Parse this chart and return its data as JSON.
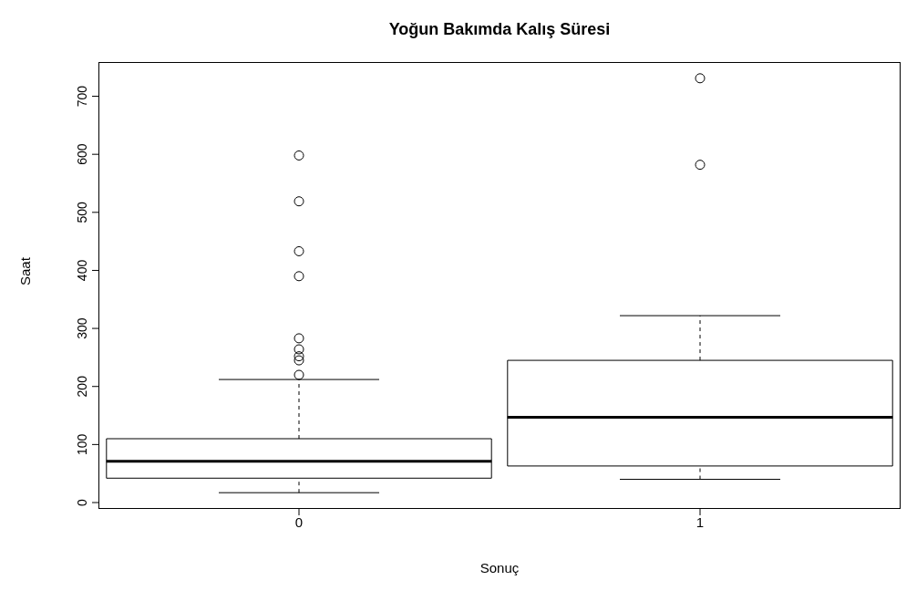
{
  "chart_data": {
    "type": "box",
    "title": "Yoğun Bakımda Kalış Süresi",
    "xlabel": "Sonuç",
    "ylabel": "Saat",
    "categories": [
      "0",
      "1"
    ],
    "boxes": [
      {
        "low": 17,
        "q1": 42,
        "median": 71,
        "q3": 110,
        "high": 212,
        "outliers": [
          220,
          245,
          252,
          264,
          283,
          390,
          433,
          519,
          598
        ]
      },
      {
        "low": 40,
        "q1": 63,
        "median": 147,
        "q3": 245,
        "high": 322,
        "outliers": [
          582,
          731
        ]
      }
    ],
    "ylim": [
      -11,
      759
    ],
    "yticks": [
      0,
      100,
      200,
      300,
      400,
      500,
      600,
      700
    ]
  }
}
